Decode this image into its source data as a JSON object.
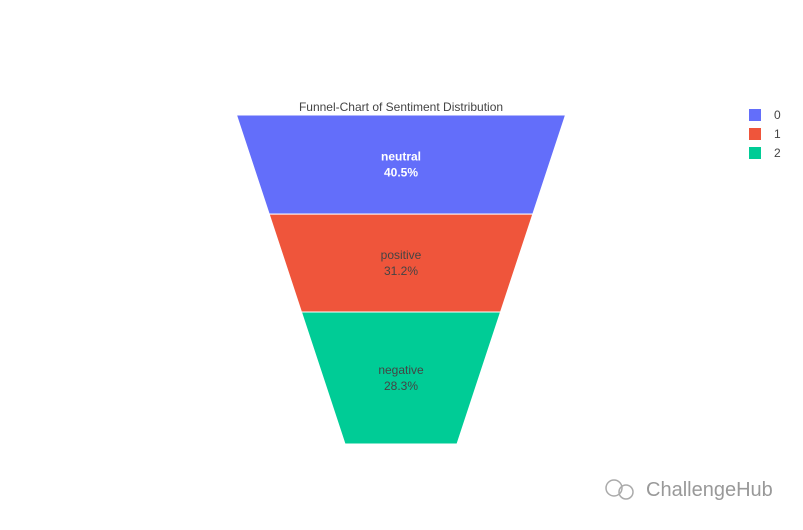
{
  "chart_data": {
    "type": "funnelarea",
    "title": "Funnel-Chart of Sentiment Distribution",
    "categories": [
      "neutral",
      "positive",
      "negative"
    ],
    "values": [
      40.5,
      31.2,
      28.3
    ],
    "value_labels": [
      "40.5%",
      "31.2%",
      "28.3%"
    ],
    "colors": [
      "#636efa",
      "#ef553b",
      "#00cc96"
    ],
    "legend": [
      "0",
      "1",
      "2"
    ],
    "watermark": "ChallengeHub"
  }
}
